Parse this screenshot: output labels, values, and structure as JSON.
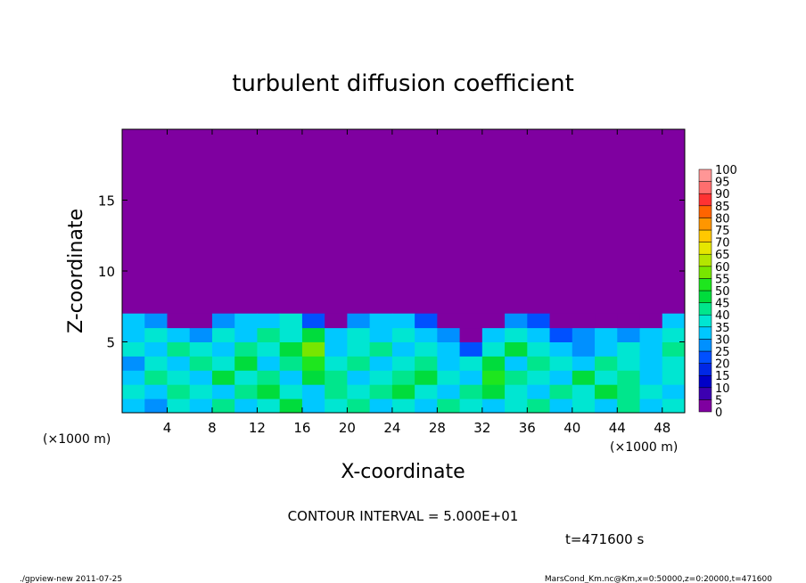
{
  "chart_data": {
    "type": "contour",
    "title": "turbulent diffusion coefficient",
    "xlabel": "X-coordinate",
    "ylabel": "Z-coordinate",
    "x_unit_label": "(×1000 m)",
    "x_unit_label_right": "(×1000 m)",
    "contour_interval": "CONTOUR INTERVAL = 5.000E+01",
    "time_label": "t=471600 s",
    "footer_left": "./gpview-new  2011-07-25",
    "footer_right": "MarsCond_Km.nc@Km,x=0:50000,z=0:20000,t=471600",
    "xlim": [
      0,
      50
    ],
    "ylim": [
      0,
      20
    ],
    "xticks": [
      4,
      8,
      12,
      16,
      20,
      24,
      28,
      32,
      36,
      40,
      44,
      48
    ],
    "yticks": [
      5,
      10,
      15
    ],
    "x": [
      1,
      3,
      5,
      7,
      9,
      11,
      13,
      15,
      17,
      19,
      21,
      23,
      25,
      27,
      29,
      31,
      33,
      35,
      37,
      39,
      41,
      43,
      45,
      47,
      49
    ],
    "z": [
      0.5,
      1.5,
      2.5,
      3.5,
      4.5,
      5.5,
      6.5
    ],
    "values": [
      [
        30,
        25,
        35,
        30,
        40,
        30,
        35,
        45,
        30,
        35,
        40,
        30,
        35,
        30,
        40,
        35,
        30,
        35,
        40,
        30,
        35,
        30,
        40,
        30,
        35
      ],
      [
        35,
        30,
        40,
        35,
        30,
        40,
        45,
        35,
        30,
        40,
        35,
        40,
        45,
        35,
        30,
        40,
        45,
        35,
        30,
        40,
        35,
        45,
        40,
        35,
        30
      ],
      [
        30,
        40,
        35,
        30,
        45,
        35,
        40,
        30,
        45,
        40,
        30,
        35,
        40,
        45,
        35,
        30,
        50,
        40,
        35,
        30,
        45,
        35,
        40,
        30,
        35
      ],
      [
        25,
        35,
        30,
        40,
        35,
        45,
        30,
        40,
        50,
        35,
        40,
        30,
        35,
        40,
        30,
        35,
        45,
        30,
        40,
        35,
        30,
        40,
        35,
        30,
        35
      ],
      [
        35,
        30,
        40,
        35,
        30,
        40,
        35,
        45,
        55,
        30,
        35,
        40,
        30,
        35,
        30,
        20,
        35,
        45,
        35,
        30,
        25,
        30,
        35,
        30,
        40
      ],
      [
        30,
        35,
        30,
        25,
        35,
        30,
        40,
        35,
        45,
        30,
        35,
        30,
        35,
        30,
        25,
        0,
        30,
        35,
        30,
        20,
        25,
        30,
        25,
        30,
        35
      ],
      [
        30,
        25,
        0,
        0,
        25,
        30,
        30,
        35,
        20,
        0,
        25,
        30,
        30,
        20,
        0,
        0,
        0,
        25,
        20,
        0,
        0,
        0,
        0,
        0,
        30
      ]
    ],
    "levels": [
      0,
      5,
      10,
      15,
      20,
      25,
      30,
      35,
      40,
      45,
      50,
      55,
      60,
      65,
      70,
      75,
      80,
      85,
      90,
      95,
      100
    ],
    "colors": [
      "#7f00a0",
      "#3c00b0",
      "#0000c8",
      "#0028e6",
      "#0050ff",
      "#0090ff",
      "#00c8ff",
      "#00e6d2",
      "#00e68c",
      "#00dc3c",
      "#1ee61e",
      "#78e600",
      "#b4e600",
      "#e6e600",
      "#ffc800",
      "#ff9600",
      "#ff6400",
      "#ff3232",
      "#ff6e6e",
      "#ff9696"
    ]
  }
}
